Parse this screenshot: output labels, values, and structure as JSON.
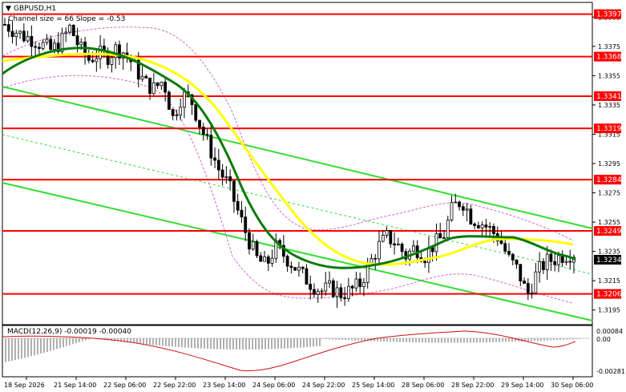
{
  "header": {
    "symbol": "GBPUSD,H1",
    "indicator_info": "Channel size = 66 Slope = -0.53"
  },
  "macd": {
    "label": "MACD(12,26,9) -0.00019 -0.00040",
    "scale": [
      "0.00084",
      "0.00",
      "-0.00281"
    ]
  },
  "colors": {
    "level_line": "#ff0000",
    "level_label_bg": "#ff0000",
    "ma_fast": "#0a7a0a",
    "ma_slow": "#ffff00",
    "channel": "#33dd33",
    "envelope": "#cc66cc",
    "histogram": "#b0b0b0",
    "signal": "#d01010"
  },
  "chart_data": {
    "type": "candlestick",
    "ylim": [
      1.3185,
      1.3405
    ],
    "y_ticks": [
      "1.3395",
      "1.3375",
      "1.3355",
      "1.3335",
      "1.3315",
      "1.3295",
      "1.3275",
      "1.3255",
      "1.3235",
      "1.3215",
      "1.3195"
    ],
    "levels": [
      "1.3397",
      "1.3368",
      "1.3341",
      "1.3319",
      "1.3284",
      "1.3249",
      "1.3206"
    ],
    "current_price": "1.3234",
    "x_labels": [
      "18 Sep 2026",
      "21 Sep 14:00",
      "22 Sep 06:00",
      "22 Sep 22:00",
      "23 Sep 14:00",
      "24 Sep 06:00",
      "24 Sep 22:00",
      "25 Sep 14:00",
      "28 Sep 06:00",
      "28 Sep 22:00",
      "29 Sep 14:00",
      "30 Sep 06:00"
    ],
    "close_path": [
      1.339,
      1.3386,
      1.3382,
      1.338,
      1.3376,
      1.3372,
      1.3378,
      1.3388,
      1.3374,
      1.3366,
      1.337,
      1.3368,
      1.3374,
      1.337,
      1.336,
      1.335,
      1.3346,
      1.3352,
      1.3326,
      1.3342,
      1.3338,
      1.332,
      1.3305,
      1.329,
      1.328,
      1.3262,
      1.3245,
      1.323,
      1.3225,
      1.3238,
      1.3232,
      1.3225,
      1.3218,
      1.3212,
      1.3208,
      1.321,
      1.3206,
      1.3208,
      1.3212,
      1.3225,
      1.3238,
      1.3245,
      1.324,
      1.3232,
      1.3238,
      1.3232,
      1.324,
      1.3245,
      1.3265,
      1.327,
      1.3258,
      1.3255,
      1.325,
      1.3244,
      1.323,
      1.3222,
      1.3205,
      1.322,
      1.3228,
      1.323,
      1.3233,
      1.3234
    ]
  }
}
